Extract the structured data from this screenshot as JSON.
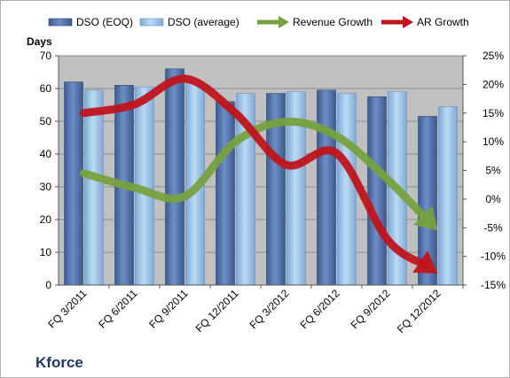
{
  "colors": {
    "plot_bg": "#c0c0c0",
    "dso_eoq": "#4f6fa8",
    "dso_avg": "#9cc3e6",
    "revenue_growth": "#77a13e",
    "ar_growth": "#c0141c"
  },
  "chart_data": {
    "type": "bar",
    "title": "Kforce",
    "ylabel": "Days",
    "categories": [
      "FQ 3/2011",
      "FQ 6/2011",
      "FQ 9/2011",
      "FQ 12/2011",
      "FQ 3/2012",
      "FQ 6/2012",
      "FQ 9/2012",
      "FQ 12/2012"
    ],
    "ylim": [
      0,
      70
    ],
    "y_ticks": [
      "0",
      "10",
      "20",
      "30",
      "40",
      "50",
      "60",
      "70"
    ],
    "y2lim": [
      -15,
      25
    ],
    "y2_ticks": [
      "-15%",
      "-10%",
      "-5%",
      "0%",
      "5%",
      "10%",
      "15%",
      "20%",
      "25%"
    ],
    "series": [
      {
        "name": "DSO (EOQ)",
        "type": "bar",
        "axis": "left",
        "values": [
          62,
          61,
          66,
          56,
          58.5,
          59.5,
          57.5,
          51.5
        ]
      },
      {
        "name": "DSO (average)",
        "type": "bar",
        "axis": "right_none",
        "values": [
          59.5,
          60.5,
          62,
          58.5,
          59,
          58.5,
          59,
          54.5
        ]
      },
      {
        "name": "Revenue Growth",
        "type": "line",
        "axis": "right",
        "values": [
          4.5,
          2,
          0.5,
          10,
          13.5,
          11,
          3.5,
          -5.5
        ]
      },
      {
        "name": "AR Growth",
        "type": "line",
        "axis": "right",
        "values": [
          15,
          16.5,
          21,
          15,
          6,
          8,
          -7,
          -13
        ]
      }
    ],
    "grid": true,
    "legend_position": "top"
  }
}
